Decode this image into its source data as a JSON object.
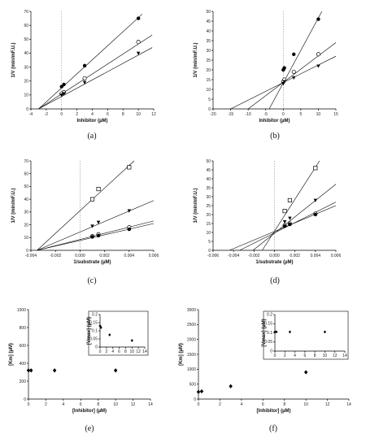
{
  "chart_data": [
    {
      "id": "a",
      "panel_label": "(a)",
      "type": "line",
      "xlabel": "Inhibitor (µM)",
      "ylabel": "1/V (min/mF.U.)",
      "xlim": [
        -4,
        12
      ],
      "ylim": [
        0,
        70
      ],
      "xticks": [
        -4,
        -2,
        0,
        2,
        4,
        6,
        8,
        10,
        12
      ],
      "yticks": [
        0,
        10,
        20,
        30,
        40,
        50,
        60,
        70
      ],
      "zero_line": true,
      "lines": [
        {
          "x1": -3,
          "y1": 0,
          "x2": 10.5,
          "y2": 68
        },
        {
          "x1": -3,
          "y1": 0,
          "x2": 11.8,
          "y2": 53
        },
        {
          "x1": -3,
          "y1": 0,
          "x2": 11.8,
          "y2": 44
        }
      ],
      "series": [
        {
          "marker": "filled-circle",
          "x": [
            0,
            0.3,
            3,
            10
          ],
          "y": [
            16,
            17.5,
            31,
            65
          ]
        },
        {
          "marker": "open-circle",
          "x": [
            0,
            0.3,
            3,
            10
          ],
          "y": [
            11,
            12,
            22,
            48
          ]
        },
        {
          "marker": "filled-triangle",
          "x": [
            0,
            0.3,
            3,
            10
          ],
          "y": [
            10,
            11,
            19,
            40
          ]
        }
      ]
    },
    {
      "id": "b",
      "panel_label": "(b)",
      "type": "line",
      "xlabel": "Inhibitor (µM)",
      "ylabel": "1/V (min/mF.U.)",
      "xlim": [
        -20,
        15
      ],
      "ylim": [
        0,
        50
      ],
      "xticks": [
        -20,
        -15,
        -10,
        -5,
        0,
        5,
        10,
        15
      ],
      "yticks": [
        0,
        5,
        10,
        15,
        20,
        25,
        30,
        35,
        40,
        45,
        50
      ],
      "zero_line": true,
      "lines": [
        {
          "x1": -4,
          "y1": 0,
          "x2": 11,
          "y2": 50
        },
        {
          "x1": -10,
          "y1": 0,
          "x2": 15,
          "y2": 34
        },
        {
          "x1": -15,
          "y1": 0,
          "x2": 15,
          "y2": 27
        }
      ],
      "series": [
        {
          "marker": "filled-circle",
          "x": [
            0,
            0.3,
            3,
            10
          ],
          "y": [
            20,
            21,
            28,
            46
          ]
        },
        {
          "marker": "open-circle",
          "x": [
            0,
            0.3,
            3,
            10
          ],
          "y": [
            14,
            15,
            19,
            28
          ]
        },
        {
          "marker": "filled-triangle",
          "x": [
            0,
            0.3,
            3,
            10
          ],
          "y": [
            13,
            14,
            16,
            22
          ]
        }
      ]
    },
    {
      "id": "c",
      "panel_label": "(c)",
      "type": "line",
      "xlabel": "1/substrate (µM)",
      "ylabel": "1/V (min/mF.U.)",
      "xlim": [
        -0.004,
        0.006
      ],
      "ylim": [
        0,
        70
      ],
      "xticks": [
        -0.004,
        -0.002,
        0.0,
        0.002,
        0.004,
        0.006
      ],
      "ytick_format": "",
      "xtick_format": "3dec",
      "yticks": [
        0,
        10,
        20,
        30,
        40,
        50,
        60,
        70
      ],
      "zero_line": true,
      "lines": [
        {
          "x1": -0.0035,
          "y1": 0,
          "x2": 0.0044,
          "y2": 70
        },
        {
          "x1": -0.0035,
          "y1": 0,
          "x2": 0.006,
          "y2": 39
        },
        {
          "x1": -0.0035,
          "y1": 0,
          "x2": 0.006,
          "y2": 23
        },
        {
          "x1": -0.0035,
          "y1": 0,
          "x2": 0.006,
          "y2": 21
        }
      ],
      "series": [
        {
          "marker": "open-square",
          "x": [
            0.001,
            0.0015,
            0.004
          ],
          "y": [
            40,
            48,
            65
          ]
        },
        {
          "marker": "filled-triangle",
          "x": [
            0.001,
            0.0015,
            0.004
          ],
          "y": [
            19,
            22,
            31
          ]
        },
        {
          "marker": "open-circle",
          "x": [
            0.001,
            0.0015,
            0.004
          ],
          "y": [
            11,
            12.5,
            18
          ]
        },
        {
          "marker": "filled-circle",
          "x": [
            0.001,
            0.0015,
            0.004
          ],
          "y": [
            10.5,
            11.5,
            16.5
          ]
        }
      ]
    },
    {
      "id": "d",
      "panel_label": "(d)",
      "type": "line",
      "xlabel": "1/substrate (µM)",
      "ylabel": "1/V (min/mF.U.)",
      "xlim": [
        -0.006,
        0.006
      ],
      "ylim": [
        0,
        50
      ],
      "xticks": [
        -0.006,
        -0.004,
        -0.002,
        0.0,
        0.002,
        0.004,
        0.006
      ],
      "xtick_format": "3dec",
      "yticks": [
        0,
        5,
        10,
        15,
        20,
        25,
        30,
        35,
        40,
        45,
        50
      ],
      "zero_line": true,
      "lines": [
        {
          "x1": -0.0012,
          "y1": 0,
          "x2": 0.0044,
          "y2": 50
        },
        {
          "x1": -0.0021,
          "y1": 0,
          "x2": 0.006,
          "y2": 37
        },
        {
          "x1": -0.0034,
          "y1": 0,
          "x2": 0.006,
          "y2": 27
        },
        {
          "x1": -0.0044,
          "y1": 0,
          "x2": 0.006,
          "y2": 25
        }
      ],
      "series": [
        {
          "marker": "open-square",
          "x": [
            0.001,
            0.0015,
            0.004
          ],
          "y": [
            22,
            28,
            46
          ]
        },
        {
          "marker": "filled-triangle",
          "x": [
            0.001,
            0.0015,
            0.004
          ],
          "y": [
            16,
            18,
            28
          ]
        },
        {
          "marker": "open-circle",
          "x": [
            0.001,
            0.0015,
            0.004
          ],
          "y": [
            14,
            15,
            20.5
          ]
        },
        {
          "marker": "filled-circle",
          "x": [
            0.001,
            0.0015,
            0.004
          ],
          "y": [
            13.5,
            14.5,
            20
          ]
        }
      ]
    },
    {
      "id": "e",
      "panel_label": "(e)",
      "type": "scatter",
      "xlabel": "[Inhibitor] (µM)",
      "ylabel": "[Km] (µM)",
      "xlim": [
        0,
        14
      ],
      "ylim": [
        0,
        1000
      ],
      "xticks": [
        0,
        2,
        4,
        6,
        8,
        10,
        12,
        14
      ],
      "yticks": [
        0,
        200,
        400,
        600,
        800,
        1000
      ],
      "series": [
        {
          "marker": "filled-diamond",
          "x": [
            0,
            0.3,
            3,
            10
          ],
          "y": [
            320,
            320,
            320,
            320
          ]
        }
      ],
      "inset": {
        "ylabel": "[Vmax] (µM)",
        "xlim": [
          0,
          14
        ],
        "ylim": [
          0,
          0.2
        ],
        "xticks": [
          0,
          2,
          4,
          6,
          8,
          10,
          12,
          14
        ],
        "yticks": [
          0,
          0.05,
          0.1,
          0.15,
          0.2
        ],
        "series": [
          {
            "marker": "filled-diamond",
            "x": [
              0,
              0.3,
              3,
              10
            ],
            "y": [
              0.13,
              0.12,
              0.075,
              0.04
            ]
          }
        ]
      }
    },
    {
      "id": "f",
      "panel_label": "(f)",
      "type": "scatter",
      "xlabel": "[Inhibitor] (µM)",
      "ylabel": "[Km] (µM)",
      "xlim": [
        0,
        14
      ],
      "ylim": [
        0,
        3000
      ],
      "xticks": [
        0,
        2,
        4,
        6,
        8,
        10,
        12,
        14
      ],
      "yticks": [
        0,
        500,
        1000,
        1500,
        2000,
        2500,
        3000
      ],
      "series": [
        {
          "marker": "filled-diamond",
          "x": [
            0,
            0.3,
            3,
            10
          ],
          "y": [
            240,
            260,
            430,
            900
          ]
        }
      ],
      "inset": {
        "ylabel": "[Vmax] (µM)",
        "xlim": [
          0,
          14
        ],
        "ylim": [
          0,
          0.2
        ],
        "xticks": [
          0,
          2,
          4,
          6,
          8,
          10,
          12,
          14
        ],
        "yticks": [
          0,
          0.05,
          0.1,
          0.15,
          0.2
        ],
        "series": [
          {
            "marker": "filled-diamond",
            "x": [
              0,
              0.3,
              3,
              10
            ],
            "y": [
              0.105,
              0.105,
              0.105,
              0.105
            ]
          }
        ]
      }
    }
  ]
}
